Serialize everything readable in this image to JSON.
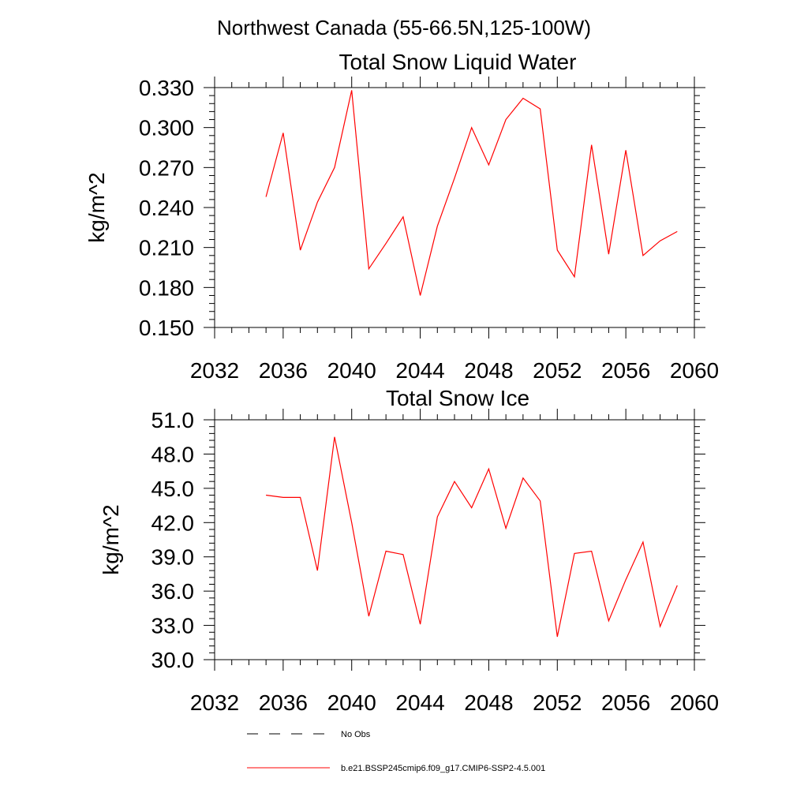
{
  "page": {
    "header": "Northwest Canada (55-66.5N,125-100W)"
  },
  "chart_data": [
    {
      "type": "line",
      "title": "Total Snow Liquid Water",
      "xlabel": "",
      "ylabel": "kg/m^2",
      "xlim": [
        2032,
        2060
      ],
      "ylim": [
        0.15,
        0.33
      ],
      "xticks": [
        2032,
        2036,
        2040,
        2044,
        2048,
        2052,
        2056,
        2060
      ],
      "xtick_labels": [
        "2032",
        "2036",
        "2040",
        "2044",
        "2048",
        "2052",
        "2056",
        "2060"
      ],
      "yticks": [
        0.15,
        0.18,
        0.21,
        0.24,
        0.27,
        0.3,
        0.33
      ],
      "ytick_labels": [
        "0.150",
        "0.180",
        "0.210",
        "0.240",
        "0.270",
        "0.300",
        "0.330"
      ],
      "grid": false,
      "series": [
        {
          "name": "b.e21.BSSP245cmip6.f09_g17.CMIP6-SSP2-4.5.001",
          "color": "#ff0000",
          "x": [
            2035,
            2036,
            2037,
            2038,
            2039,
            2040,
            2041,
            2042,
            2043,
            2044,
            2045,
            2046,
            2047,
            2048,
            2049,
            2050,
            2051,
            2052,
            2053,
            2054,
            2055,
            2056,
            2057,
            2058,
            2059
          ],
          "y": [
            0.248,
            0.296,
            0.208,
            0.244,
            0.27,
            0.328,
            0.194,
            0.213,
            0.233,
            0.174,
            0.226,
            0.262,
            0.3,
            0.272,
            0.306,
            0.322,
            0.314,
            0.208,
            0.188,
            0.287,
            0.205,
            0.283,
            0.204,
            0.215,
            0.222
          ]
        }
      ]
    },
    {
      "type": "line",
      "title": "Total Snow Ice",
      "xlabel": "",
      "ylabel": "kg/m^2",
      "xlim": [
        2032,
        2060
      ],
      "ylim": [
        30.0,
        51.0
      ],
      "xticks": [
        2032,
        2036,
        2040,
        2044,
        2048,
        2052,
        2056,
        2060
      ],
      "xtick_labels": [
        "2032",
        "2036",
        "2040",
        "2044",
        "2048",
        "2052",
        "2056",
        "2060"
      ],
      "yticks": [
        30,
        33,
        36,
        39,
        42,
        45,
        48,
        51
      ],
      "ytick_labels": [
        "30.0",
        "33.0",
        "36.0",
        "39.0",
        "42.0",
        "45.0",
        "48.0",
        "51.0"
      ],
      "grid": false,
      "series": [
        {
          "name": "b.e21.BSSP245cmip6.f09_g17.CMIP6-SSP2-4.5.001",
          "color": "#ff0000",
          "x": [
            2035,
            2036,
            2037,
            2038,
            2039,
            2040,
            2041,
            2042,
            2043,
            2044,
            2045,
            2046,
            2047,
            2048,
            2049,
            2050,
            2051,
            2052,
            2053,
            2054,
            2055,
            2056,
            2057,
            2058,
            2059
          ],
          "y": [
            44.4,
            44.2,
            44.2,
            37.8,
            49.5,
            42.0,
            33.8,
            39.5,
            39.2,
            33.1,
            42.5,
            45.6,
            43.3,
            46.7,
            41.5,
            45.9,
            43.9,
            32.0,
            39.3,
            39.5,
            33.4,
            37.0,
            40.3,
            32.9,
            36.5
          ]
        }
      ]
    }
  ],
  "legend": {
    "placement": "bottom-center",
    "entries": [
      {
        "label": "No Obs",
        "style": "dashed",
        "color": "#000000"
      },
      {
        "label": "b.e21.BSSP245cmip6.f09_g17.CMIP6-SSP2-4.5.001",
        "style": "solid",
        "color": "#ff0000"
      }
    ]
  }
}
